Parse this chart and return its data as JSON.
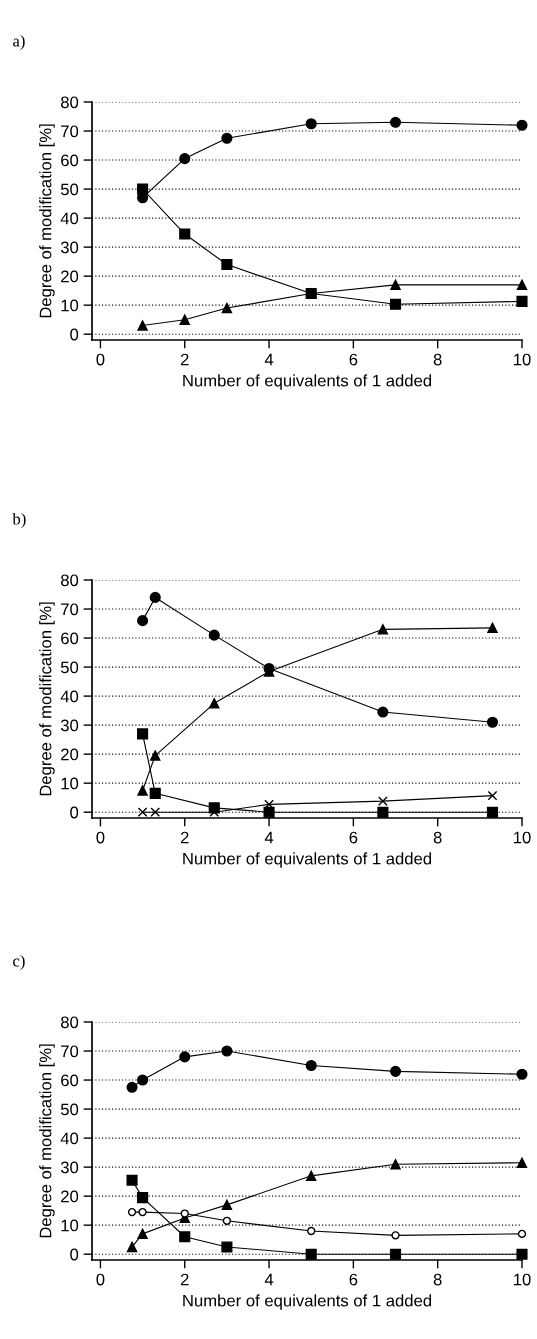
{
  "chart_data": [
    {
      "type": "line",
      "title": "a)",
      "xlabel": "Number of equivalents of 1 added",
      "ylabel": "Degree of modification [%]",
      "x": [
        1,
        2,
        3,
        5,
        7,
        10
      ],
      "xlim": [
        -0.2,
        10
      ],
      "xticks": [
        0,
        2,
        4,
        6,
        8,
        10
      ],
      "ylim": [
        -2,
        80
      ],
      "yticks": [
        0,
        10,
        20,
        30,
        40,
        50,
        60,
        70,
        80
      ],
      "grid": "y",
      "line_style": "solid",
      "series": [
        {
          "color": "#000000",
          "marker": "circle",
          "values": [
            47,
            60.5,
            67.5,
            72.5,
            73,
            72
          ]
        },
        {
          "color": "#000000",
          "marker": "square",
          "values": [
            50,
            34.5,
            24,
            14,
            10.3,
            11.3
          ]
        },
        {
          "color": "#000000",
          "marker": "triangle",
          "values": [
            3,
            5,
            9,
            14,
            17,
            17
          ]
        }
      ]
    },
    {
      "type": "line",
      "title": "b)",
      "xlabel": "Number of equivalents of 1 added",
      "ylabel": "Degree of modification [%]",
      "x": [
        1,
        1.3,
        2.7,
        4,
        6.7,
        9.3
      ],
      "xlim": [
        -0.2,
        10
      ],
      "xticks": [
        0,
        2,
        4,
        6,
        8,
        10
      ],
      "ylim": [
        -2,
        80
      ],
      "yticks": [
        0,
        10,
        20,
        30,
        40,
        50,
        60,
        70,
        80
      ],
      "grid": "y",
      "line_style": "solid",
      "series": [
        {
          "color": "#000000",
          "marker": "circle",
          "values": [
            66,
            74,
            61,
            49.5,
            34.5,
            31
          ]
        },
        {
          "color": "#000000",
          "marker": "triangle",
          "values": [
            7.5,
            19.5,
            37.5,
            48.5,
            63,
            63.5
          ]
        },
        {
          "color": "#000000",
          "marker": "square",
          "values": [
            27,
            6.5,
            1.5,
            0,
            0,
            0
          ]
        },
        {
          "color": "#000000",
          "marker": "cross",
          "values": [
            0,
            0,
            0,
            2.7,
            3.8,
            5.7
          ]
        }
      ]
    },
    {
      "type": "line",
      "title": "c)",
      "xlabel": "Number of equivalents of 1 added",
      "ylabel": "Degree of modification [%]",
      "x": [
        0.75,
        1,
        2,
        3,
        5,
        7,
        10
      ],
      "xlim": [
        -0.2,
        10
      ],
      "xticks": [
        0,
        2,
        4,
        6,
        8,
        10
      ],
      "ylim": [
        -2,
        80
      ],
      "yticks": [
        0,
        10,
        20,
        30,
        40,
        50,
        60,
        70,
        80
      ],
      "grid": "y",
      "line_style": "solid",
      "series": [
        {
          "color": "#000000",
          "marker": "circle",
          "values": [
            57.5,
            60,
            68,
            70,
            65,
            63,
            62
          ]
        },
        {
          "color": "#000000",
          "marker": "square",
          "values": [
            25.5,
            19.5,
            6,
            2.5,
            0,
            0,
            0
          ]
        },
        {
          "color": "#000000",
          "marker": "triangle",
          "values": [
            2.5,
            7,
            12.5,
            17,
            27,
            31,
            31.5
          ]
        },
        {
          "color": "#000000",
          "marker": "circle",
          "values": [
            14.5,
            14.5,
            14,
            11.5,
            8,
            6.5,
            7
          ]
        }
      ]
    }
  ]
}
